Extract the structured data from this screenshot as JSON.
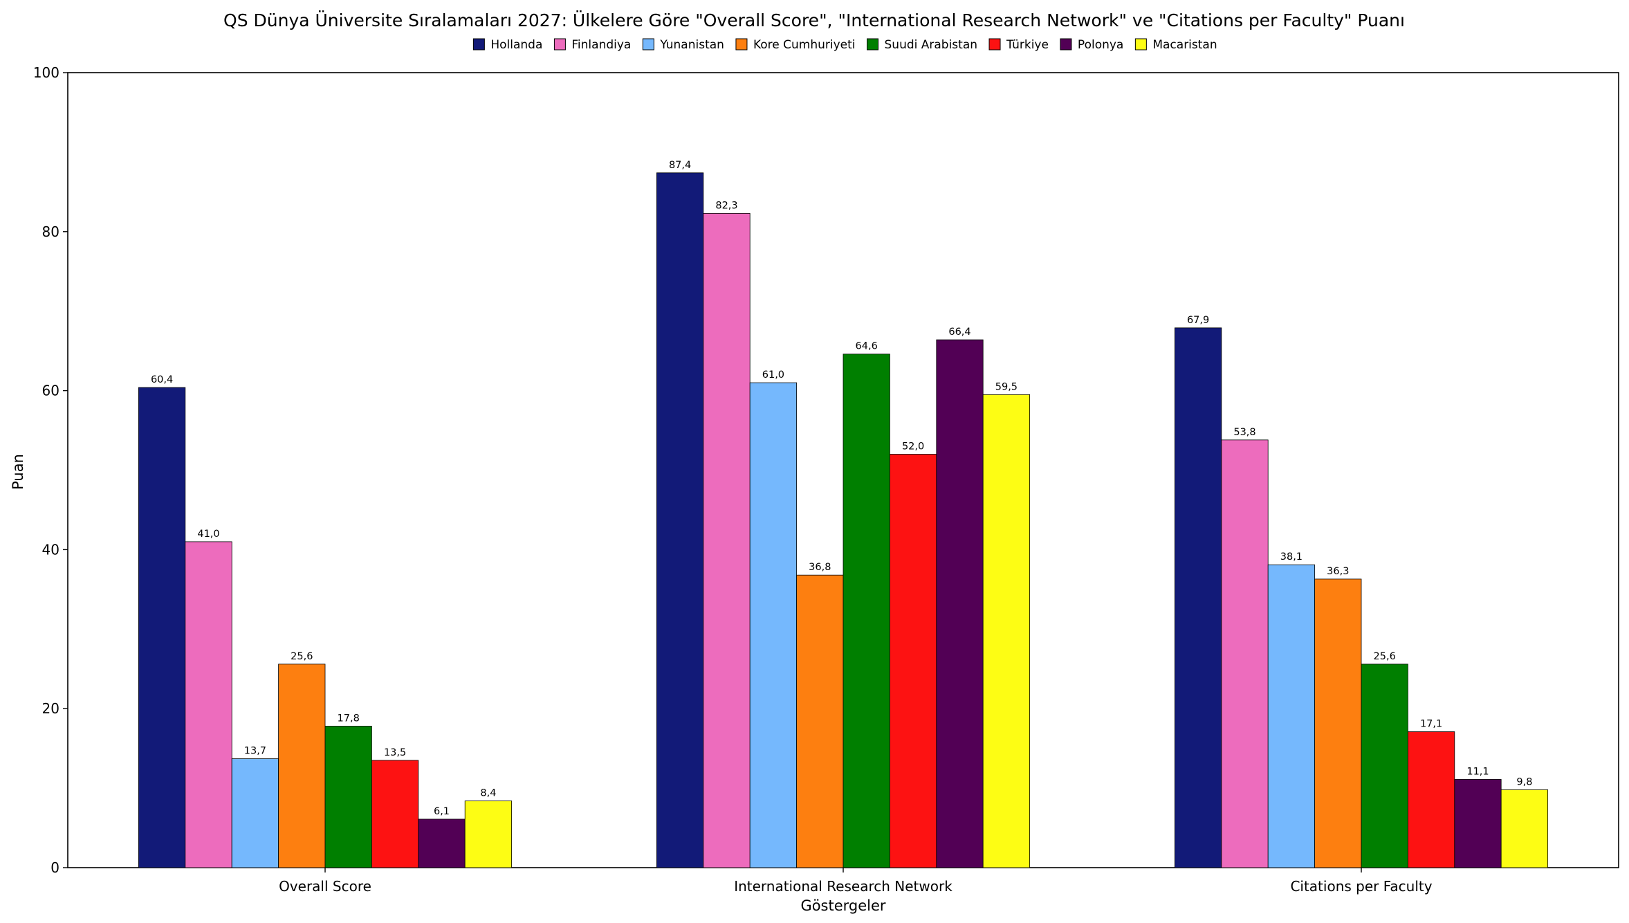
{
  "chart_data": {
    "type": "bar",
    "title": "QS Dünya Üniversite Sıralamaları 2027: Ülkelere Göre \"Overall Score\", \"International Research Network\" ve \"Citations per Faculty\" Puanı",
    "xlabel": "Göstergeler",
    "ylabel": "Puan",
    "ylim": [
      0,
      100
    ],
    "yticks": [
      "0",
      "20",
      "40",
      "60",
      "80",
      "100"
    ],
    "categories": [
      "Overall Score",
      "International Research Network",
      "Citations per Faculty"
    ],
    "legend_position": "top-center",
    "grid": false,
    "series": [
      {
        "name": "Hollanda",
        "color": "#121a78",
        "values": [
          60.4,
          87.4,
          67.9
        ],
        "labels": [
          "60,4",
          "87,4",
          "67,9"
        ]
      },
      {
        "name": "Finlandiya",
        "color": "#ed6cbd",
        "values": [
          41.0,
          82.3,
          53.8
        ],
        "labels": [
          "41,0",
          "82,3",
          "53,8"
        ]
      },
      {
        "name": "Yunanistan",
        "color": "#75b8fd",
        "values": [
          13.7,
          61.0,
          38.1
        ],
        "labels": [
          "13,7",
          "61,0",
          "38,1"
        ]
      },
      {
        "name": "Kore Cumhuriyeti",
        "color": "#fd7f10",
        "values": [
          25.6,
          36.8,
          36.3
        ],
        "labels": [
          "25,6",
          "36,8",
          "36,3"
        ]
      },
      {
        "name": "Suudi Arabistan",
        "color": "#007f00",
        "values": [
          17.8,
          64.6,
          25.6
        ],
        "labels": [
          "17,8",
          "64,6",
          "25,6"
        ]
      },
      {
        "name": "Türkiye",
        "color": "#fd1212",
        "values": [
          13.5,
          52.0,
          17.1
        ],
        "labels": [
          "13,5",
          "52,0",
          "17,1"
        ]
      },
      {
        "name": "Polonya",
        "color": "#520055",
        "values": [
          6.1,
          66.4,
          11.1
        ],
        "labels": [
          "6,1",
          "66,4",
          "11,1"
        ]
      },
      {
        "name": "Macaristan",
        "color": "#fdfd14",
        "values": [
          8.4,
          59.5,
          9.8
        ],
        "labels": [
          "8,4",
          "59,5",
          "9,8"
        ]
      }
    ]
  }
}
